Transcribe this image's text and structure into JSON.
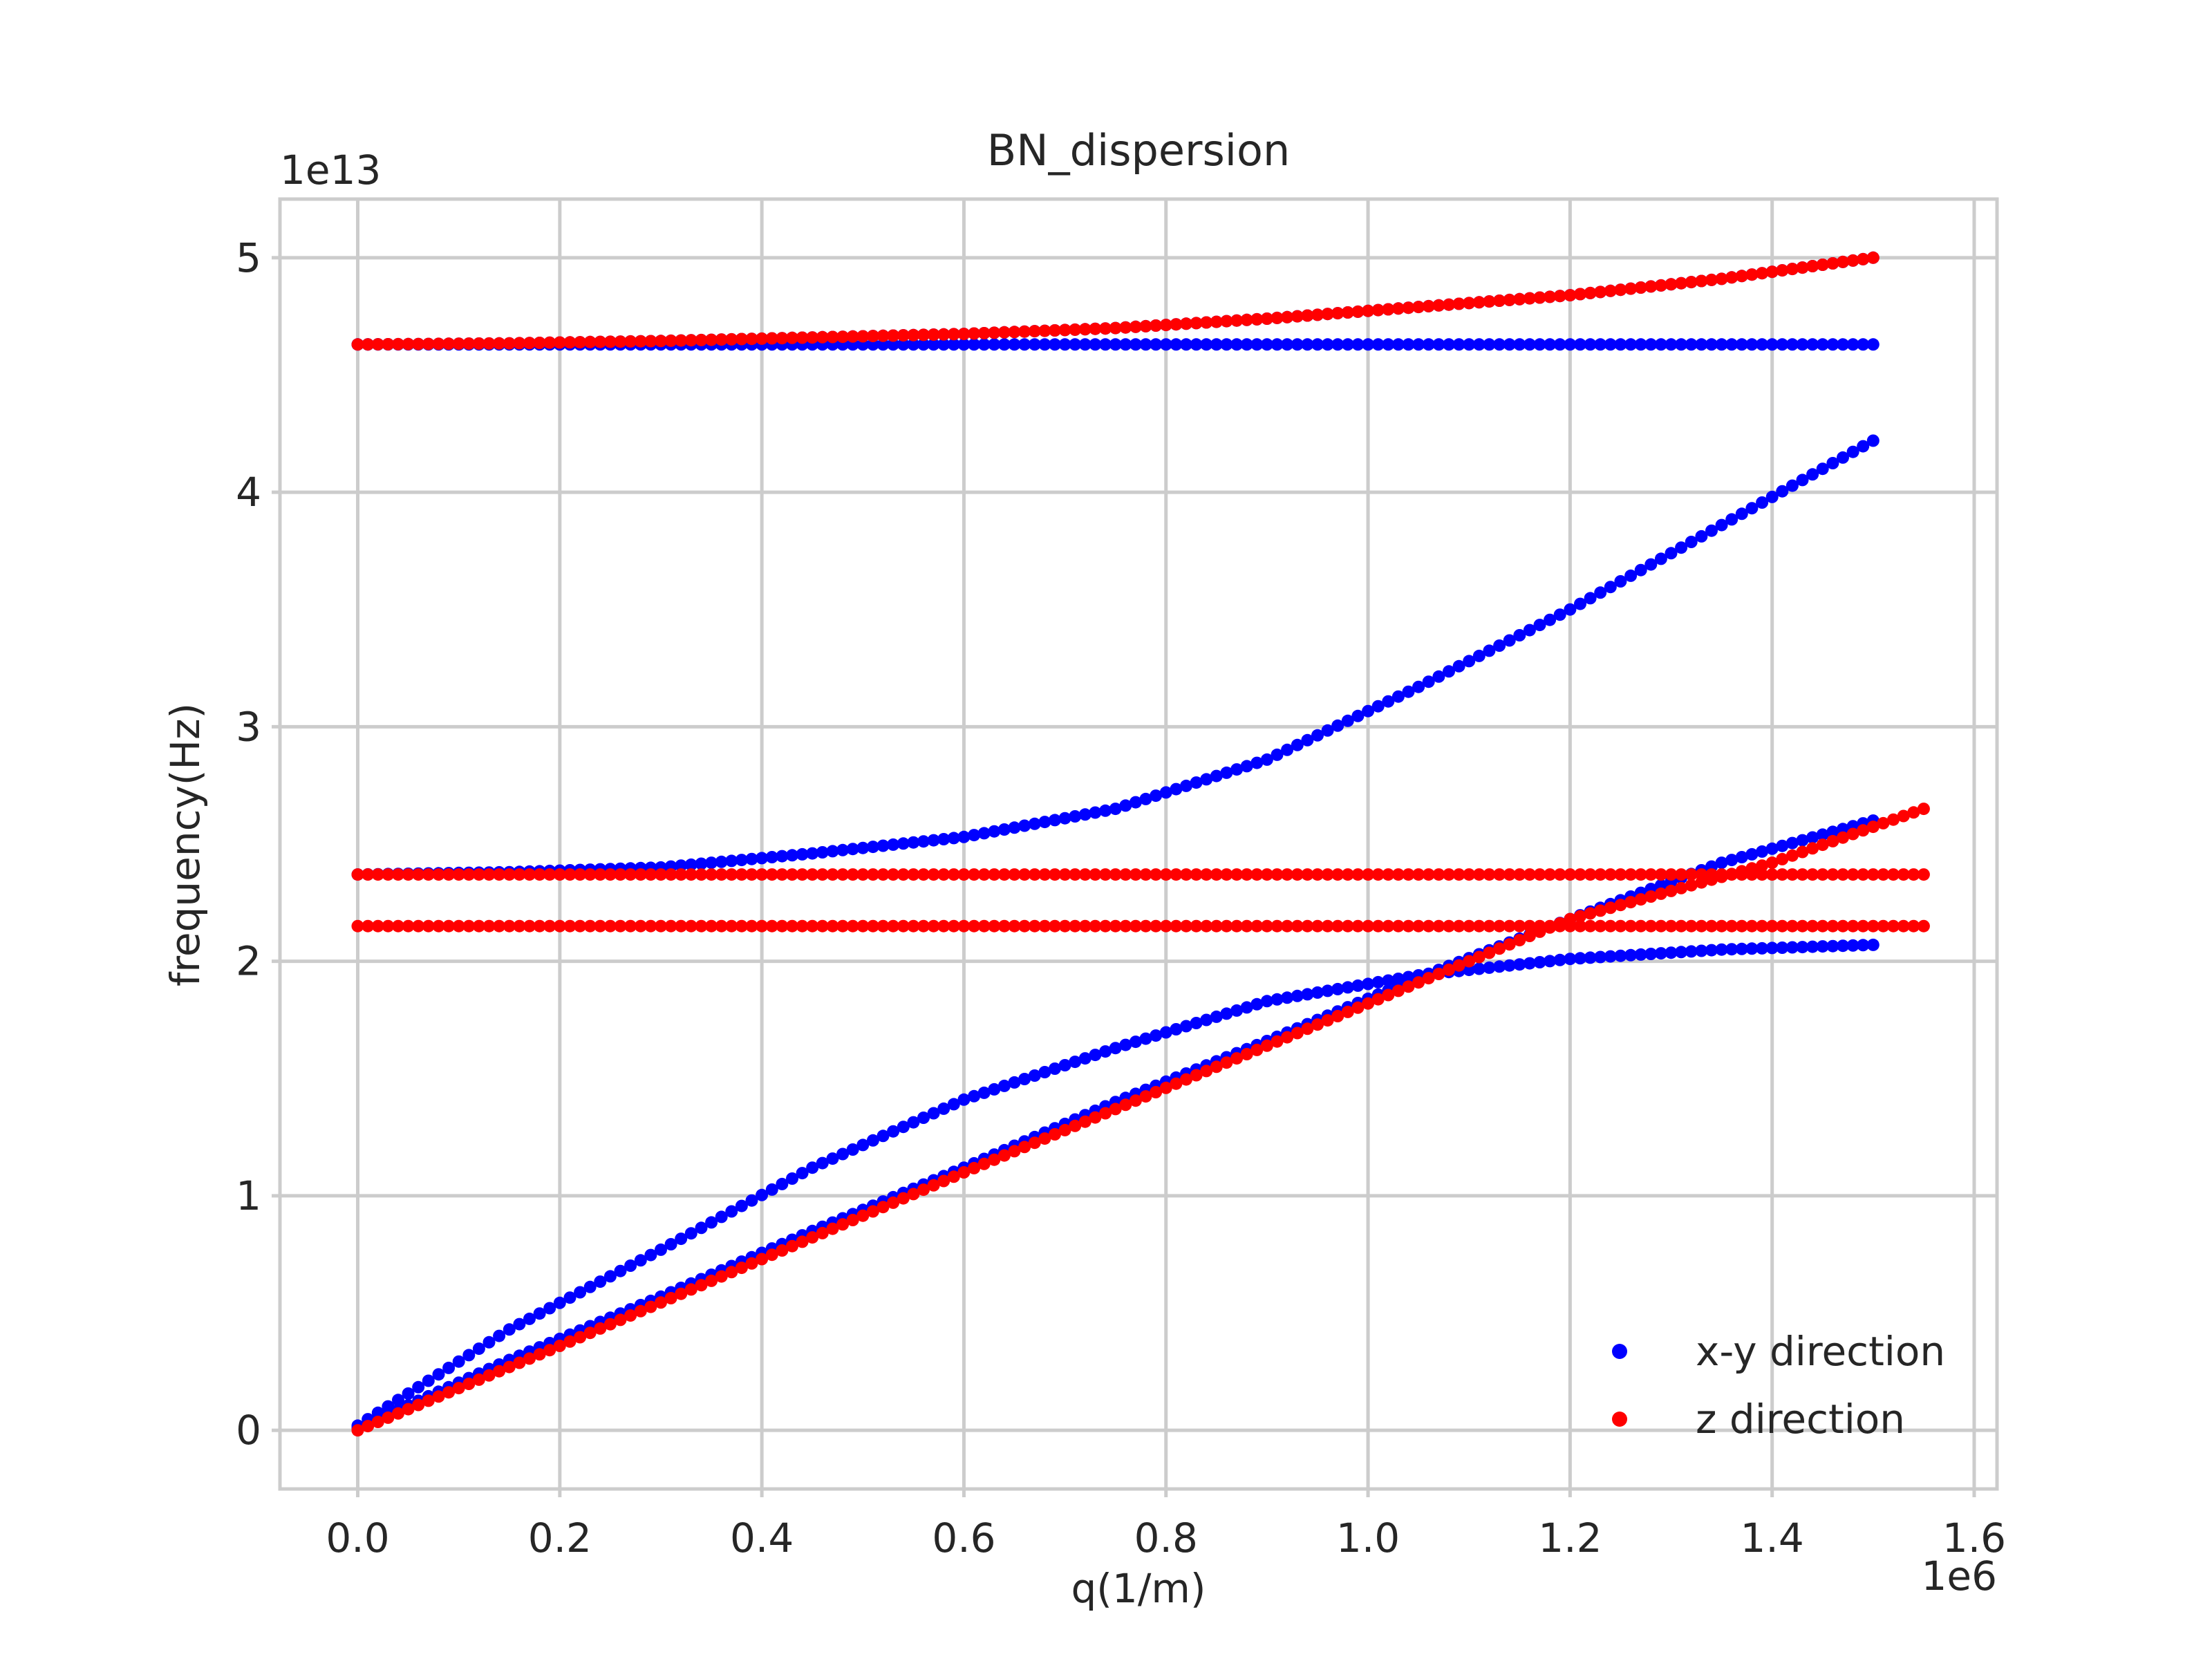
{
  "chart_data": {
    "type": "scatter",
    "title": "BN_dispersion",
    "xlabel": "q(1/m)",
    "ylabel": "frequency(Hz)",
    "x_offset_label": "1e6",
    "y_offset_label": "1e13",
    "xlim": [
      -0.077,
      1.6226
    ],
    "ylim": [
      -0.25,
      5.25
    ],
    "xticks": [
      0.0,
      0.2,
      0.4,
      0.6,
      0.8,
      1.0,
      1.2,
      1.4,
      1.6
    ],
    "xtick_labels": [
      "0.0",
      "0.2",
      "0.4",
      "0.6",
      "0.8",
      "1.0",
      "1.2",
      "1.4",
      "1.6"
    ],
    "yticks": [
      0,
      1,
      2,
      3,
      4,
      5
    ],
    "ytick_labels": [
      "0",
      "1",
      "2",
      "3",
      "4",
      "5"
    ],
    "grid": true,
    "legend_position": "lower-right",
    "colors": {
      "xy": "#0000ff",
      "z": "#ff0000",
      "grid": "#cccccc"
    },
    "series": [
      {
        "name": "x-y direction",
        "color": "#0000ff",
        "curves": [
          {
            "x": [
              0.0,
              0.15,
              0.3,
              0.45,
              0.6,
              0.75,
              0.9,
              1.05,
              1.2,
              1.35,
              1.5
            ],
            "y": [
              4.63,
              4.63,
              4.63,
              4.63,
              4.63,
              4.63,
              4.63,
              4.63,
              4.63,
              4.63,
              4.63
            ]
          },
          {
            "x": [
              0.0,
              0.15,
              0.3,
              0.45,
              0.6,
              0.75,
              0.9,
              1.05,
              1.2,
              1.35,
              1.5
            ],
            "y": [
              4.63,
              4.635,
              4.645,
              4.66,
              4.675,
              4.7,
              4.74,
              4.79,
              4.84,
              4.91,
              5.0
            ]
          },
          {
            "x": [
              0.0,
              0.15,
              0.3,
              0.45,
              0.6,
              0.75,
              0.9,
              1.05,
              1.2,
              1.35,
              1.5
            ],
            "y": [
              2.37,
              2.38,
              2.4,
              2.46,
              2.53,
              2.65,
              2.86,
              3.17,
              3.5,
              3.86,
              4.22
            ]
          },
          {
            "x": [
              0.0,
              0.15,
              0.3,
              0.45,
              0.6,
              0.75,
              0.9,
              1.05,
              1.2,
              1.35,
              1.5
            ],
            "y": [
              0.02,
              0.43,
              0.77,
              1.12,
              1.41,
              1.63,
              1.83,
              1.94,
              2.01,
              2.05,
              2.07
            ]
          },
          {
            "x": [
              0.0,
              0.15,
              0.3,
              0.45,
              0.6,
              0.75,
              0.9,
              1.05,
              1.2,
              1.35,
              1.5
            ],
            "y": [
              0.01,
              0.3,
              0.57,
              0.85,
              1.12,
              1.4,
              1.66,
              1.93,
              2.18,
              2.42,
              2.6
            ]
          }
        ]
      },
      {
        "name": "z direction",
        "color": "#ff0000",
        "curves": [
          {
            "x": [
              0.0,
              0.15,
              0.3,
              0.45,
              0.6,
              0.75,
              0.9,
              1.05,
              1.2,
              1.35,
              1.5
            ],
            "y": [
              4.63,
              4.635,
              4.645,
              4.66,
              4.675,
              4.7,
              4.74,
              4.79,
              4.84,
              4.91,
              5.0
            ]
          },
          {
            "x": [
              0.0,
              0.2,
              0.4,
              0.6,
              0.8,
              1.0,
              1.2,
              1.4,
              1.55
            ],
            "y": [
              2.37,
              2.37,
              2.37,
              2.37,
              2.37,
              2.37,
              2.37,
              2.37,
              2.37
            ]
          },
          {
            "x": [
              0.0,
              0.2,
              0.4,
              0.6,
              0.8,
              1.0,
              1.2,
              1.4,
              1.55
            ],
            "y": [
              2.15,
              2.15,
              2.15,
              2.15,
              2.15,
              2.15,
              2.15,
              2.15,
              2.15
            ]
          },
          {
            "x": [
              0.0,
              0.2,
              0.4,
              0.6,
              0.8,
              1.0,
              1.2,
              1.4,
              1.55
            ],
            "y": [
              0.0,
              0.36,
              0.73,
              1.1,
              1.46,
              1.82,
              2.18,
              2.42,
              2.65
            ]
          }
        ]
      }
    ]
  }
}
